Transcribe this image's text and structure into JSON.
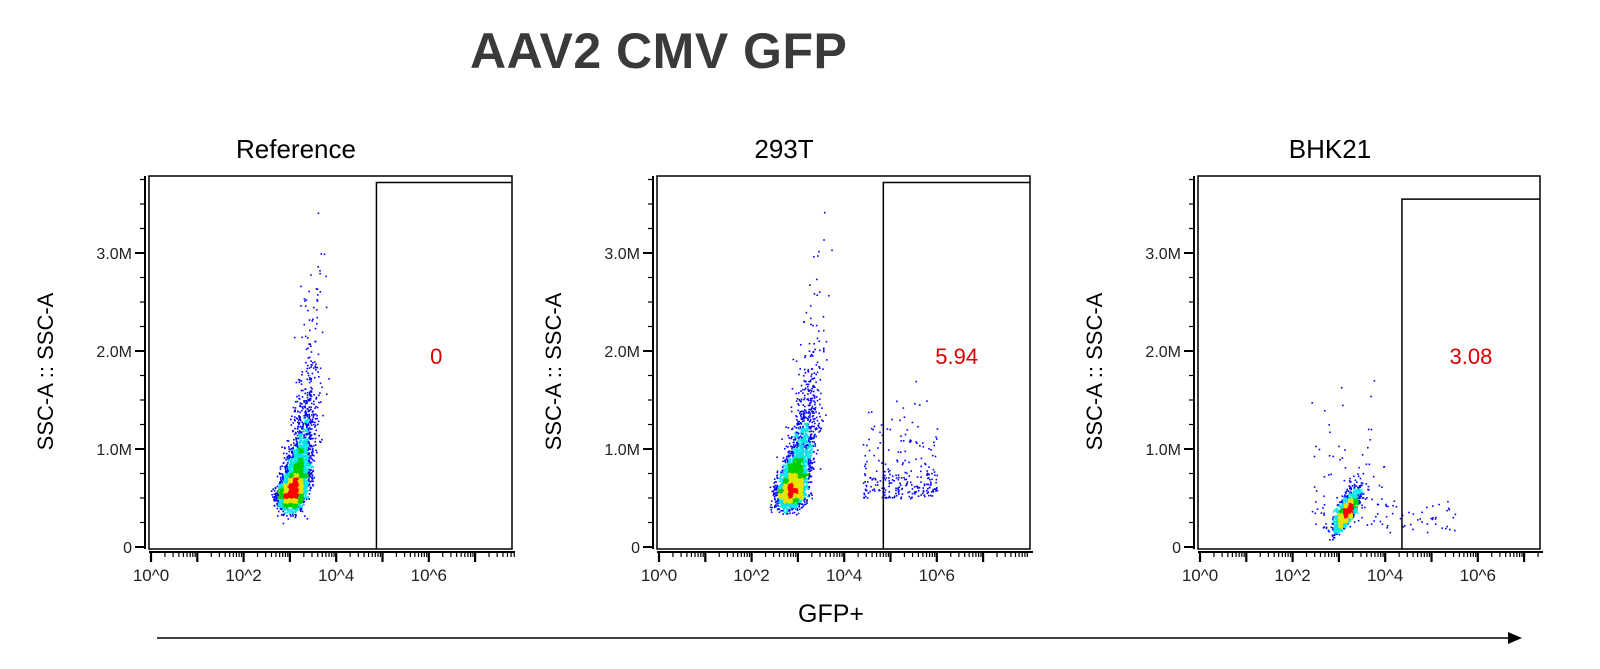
{
  "title": "AAV2 CMV GFP",
  "chart_data": {
    "type": "scatter",
    "shared_xlabel": "GFP+",
    "panels": [
      {
        "title": "Reference",
        "ylabel": "SSC-A :: SSC-A",
        "gate_label": "0",
        "gate_x_min": 74000,
        "gate_y_max": 3720000
      },
      {
        "title": "293T",
        "ylabel": "SSC-A :: SSC-A",
        "gate_label": "5.94",
        "gate_x_min": 70000,
        "gate_y_max": 3720000
      },
      {
        "title": "BHK21",
        "ylabel": "SSC-A :: SSC-A",
        "gate_label": "3.08",
        "gate_x_min": 23000,
        "gate_y_max": 3550000
      }
    ],
    "x_scale": "log",
    "xlim": [
      1,
      80000000
    ],
    "x_tick_labels": [
      "10^0",
      "10^2",
      "10^4",
      "10^6"
    ],
    "ylim": [
      0,
      3780000
    ],
    "y_ticks": [
      0,
      1000000,
      2000000,
      3000000
    ],
    "y_tick_labels": [
      "0",
      "1.0M",
      "2.0M",
      "3.0M"
    ],
    "density_colors": [
      "#0000ff",
      "#00e5e5",
      "#00d000",
      "#e5e500",
      "#ff0000"
    ],
    "gate_label_color": "#dd0000",
    "grid": false,
    "legend": "none"
  }
}
